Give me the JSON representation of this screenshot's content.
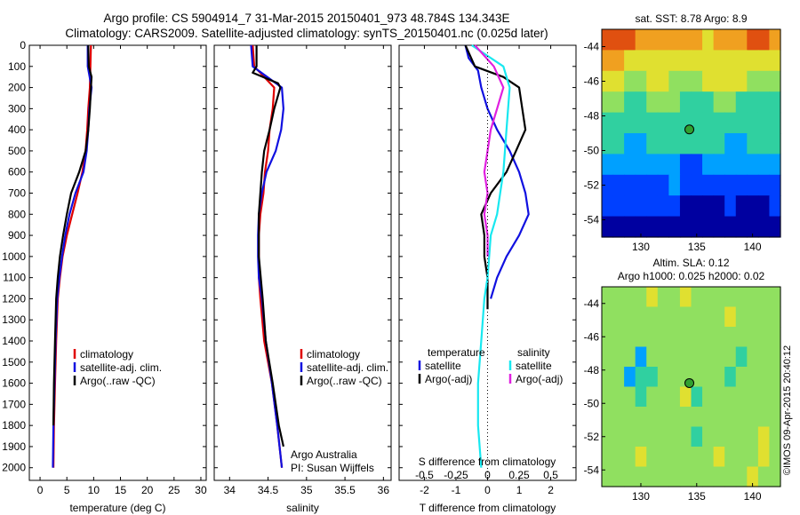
{
  "header": {
    "line1": "Argo profile: CS 5904914_7 31-Mar-2015 20150401_973 48.784S 134.343E",
    "line2": "Climatology: CARS2009. Satellite-adjusted climatology: synTS_20150401.nc (0.025d later)"
  },
  "colors": {
    "climatology": "#e00000",
    "satellite": "#1010e0",
    "argo": "#000000",
    "cyan": "#18e8f0",
    "magenta": "#e020e0",
    "marker": "#30a030"
  },
  "panels": {
    "temperature": {
      "xlabel": "temperature (deg C)",
      "xticks": [
        "0",
        "5",
        "10",
        "15",
        "20",
        "25",
        "30"
      ],
      "legend": [
        "climatology",
        "satellite-adj. clim.",
        "Argo(..raw -QC)"
      ]
    },
    "salinity": {
      "xlabel": "salinity",
      "xticks": [
        "34",
        "34.5",
        "35",
        "35.5",
        "36"
      ],
      "legend": [
        "climatology",
        "satellite-adj. clim.",
        "Argo(..raw -QC)"
      ],
      "note1": "Argo Australia",
      "note2": "PI: Susan Wijffels"
    },
    "difference": {
      "top_label": "S difference from climatology",
      "top_ticks": [
        "-0.5",
        "-0.25",
        "0",
        "0.25",
        "0.5"
      ],
      "xlabel": "T difference from climatology",
      "xticks": [
        "-2",
        "-1",
        "0",
        "1",
        "2"
      ],
      "legend_t_title": "temperature",
      "legend_t": [
        "satellite",
        "Argo(-adj)"
      ],
      "legend_s_title": "salinity",
      "legend_s": [
        "satellite",
        "Argo(-adj)"
      ]
    },
    "depth_ticks": [
      "0",
      "100",
      "200",
      "300",
      "400",
      "500",
      "600",
      "700",
      "800",
      "900",
      "1000",
      "1100",
      "1200",
      "1300",
      "1400",
      "1500",
      "1600",
      "1700",
      "1800",
      "1900",
      "2000"
    ]
  },
  "maps": {
    "sst_title": "sat. SST: 8.78 Argo: 8.9",
    "sla_title1": "Altim. SLA: 0.12",
    "sla_title2": "Argo h1000: 0.025 h2000: 0.02",
    "yticks": [
      "-44",
      "-46",
      "-48",
      "-50",
      "-52",
      "-54"
    ],
    "xticks": [
      "130",
      "135",
      "140"
    ],
    "footer": "©IMOS 09-Apr-2015 20:40:12"
  },
  "chart_data": [
    {
      "type": "line",
      "title": "",
      "xlabel": "temperature (deg C)",
      "ylabel": "",
      "xlim": [
        -2,
        31
      ],
      "ylim": [
        2060,
        0
      ],
      "series": [
        {
          "name": "climatology",
          "x": [
            9.5,
            9.4,
            9.3,
            9.0,
            8.8,
            8.5,
            7.9,
            7.0,
            6.0,
            5.0,
            4.2,
            3.7,
            3.3,
            3.0,
            2.8,
            2.6,
            2.5
          ],
          "y": [
            0,
            100,
            200,
            300,
            400,
            500,
            600,
            700,
            800,
            900,
            1000,
            1100,
            1200,
            1400,
            1600,
            1800,
            2000
          ]
        },
        {
          "name": "satellite-adj. clim.",
          "x": [
            8.9,
            8.9,
            9.6,
            9.2,
            9.0,
            8.7,
            8.1,
            6.6,
            5.5,
            4.7,
            4.1,
            3.6,
            3.2,
            2.9,
            2.7,
            2.5,
            2.4
          ],
          "y": [
            0,
            100,
            200,
            300,
            400,
            500,
            600,
            700,
            800,
            900,
            1000,
            1100,
            1200,
            1400,
            1600,
            1800,
            2000
          ]
        },
        {
          "name": "Argo(..raw -QC)",
          "x": [
            9.0,
            9.1,
            9.6,
            9.5,
            9.3,
            9.0,
            8.5,
            7.3,
            5.8,
            5.0,
            4.3,
            3.7,
            3.3,
            3.0,
            2.8,
            2.6,
            2.5
          ],
          "y": [
            0,
            100,
            150,
            200,
            300,
            400,
            500,
            600,
            700,
            800,
            900,
            1000,
            1100,
            1200,
            1400,
            1600,
            1800
          ]
        }
      ]
    },
    {
      "type": "line",
      "title": "",
      "xlabel": "salinity",
      "ylabel": "",
      "xlim": [
        33.8,
        36.1
      ],
      "ylim": [
        2060,
        0
      ],
      "series": [
        {
          "name": "climatology",
          "x": [
            34.3,
            34.32,
            34.58,
            34.56,
            34.52,
            34.5,
            34.46,
            34.44,
            34.4,
            34.38,
            34.38,
            34.38,
            34.4,
            34.45,
            34.55,
            34.62,
            34.68
          ],
          "y": [
            0,
            100,
            200,
            300,
            400,
            500,
            600,
            700,
            800,
            900,
            1000,
            1100,
            1200,
            1400,
            1600,
            1800,
            2000
          ]
        },
        {
          "name": "satellite-adj. clim.",
          "x": [
            34.28,
            34.3,
            34.68,
            34.7,
            34.67,
            34.6,
            34.48,
            34.42,
            34.38,
            34.37,
            34.37,
            34.38,
            34.42,
            34.47,
            34.55,
            34.62,
            34.68
          ],
          "y": [
            0,
            100,
            200,
            300,
            400,
            500,
            600,
            700,
            800,
            900,
            1000,
            1100,
            1200,
            1400,
            1600,
            1800,
            2000
          ]
        },
        {
          "name": "Argo(..raw -QC)",
          "x": [
            34.35,
            34.35,
            34.3,
            34.63,
            34.66,
            34.58,
            34.52,
            34.45,
            34.42,
            34.4,
            34.38,
            34.38,
            34.43,
            34.47,
            34.56,
            34.64,
            34.7
          ],
          "y": [
            0,
            100,
            130,
            180,
            200,
            300,
            400,
            500,
            600,
            700,
            800,
            1000,
            1200,
            1400,
            1600,
            1800,
            1900
          ]
        }
      ]
    },
    {
      "type": "line",
      "title": "",
      "xlabel": "T difference from climatology",
      "ylabel": "",
      "xlim": [
        -2.8,
        2.8
      ],
      "ylim": [
        2060,
        0
      ],
      "series": [
        {
          "name": "temperature satellite",
          "x": [
            -0.7,
            -0.6,
            -0.3,
            -0.2,
            0,
            0.3,
            0.7,
            1.0,
            1.2,
            1.3,
            1.0,
            0.6,
            0.3,
            0.1
          ],
          "y": [
            0,
            60,
            120,
            200,
            300,
            400,
            500,
            600,
            700,
            800,
            900,
            1000,
            1100,
            1200
          ]
        },
        {
          "name": "temperature Argo(-adj)",
          "x": [
            -0.7,
            -0.4,
            0.5,
            1.0,
            1.2,
            0.9,
            0.6,
            0.1,
            -0.2,
            -0.1,
            -0.1,
            0,
            0,
            0
          ],
          "y": [
            0,
            100,
            150,
            200,
            400,
            500,
            600,
            700,
            800,
            900,
            1000,
            1100,
            1200,
            1250
          ]
        },
        {
          "name": "salinity satellite",
          "x": [
            -0.5,
            0.5,
            0.7,
            0.6,
            0.5,
            0.4,
            0.3,
            0.1,
            0,
            -0.1,
            -0.2,
            -0.3,
            -0.3,
            -0.2
          ],
          "y": [
            0,
            100,
            200,
            400,
            600,
            700,
            800,
            900,
            1100,
            1200,
            1400,
            1600,
            1800,
            2000
          ]
        },
        {
          "name": "salinity Argo(-adj)",
          "x": [
            -0.4,
            0.2,
            0.5,
            0.3,
            0.1,
            0,
            -0.1,
            0,
            -0.1,
            0,
            0
          ],
          "y": [
            0,
            100,
            200,
            300,
            400,
            500,
            600,
            700,
            800,
            900,
            1000
          ]
        }
      ]
    },
    {
      "type": "heatmap",
      "title": "sat. SST: 8.78 Argo: 8.9",
      "xlim": [
        126.5,
        142.5
      ],
      "ylim": [
        -55,
        -43
      ],
      "colorscale": [
        "#0000a0",
        "#0040ff",
        "#00a0ff",
        "#30d0a0",
        "#90e060",
        "#e0e030",
        "#f0a020",
        "#e05010"
      ],
      "rows": [
        "7776666665666776",
        "6655555555555555",
        "5544554445555444",
        "4433444333443333",
        "3333333333333333",
        "3322333333322333",
        "2222222112222222",
        "1111112111111111",
        "1111111000010001",
        "0000000000000000"
      ],
      "float_lon": 134.343,
      "float_lat": -48.784
    },
    {
      "type": "heatmap",
      "title": "Altim. SLA: 0.12",
      "xlim": [
        126.5,
        142.5
      ],
      "ylim": [
        -55,
        -43
      ],
      "colorscale": [
        "#0000a0",
        "#0040ff",
        "#00a0ff",
        "#30d0a0",
        "#90e060",
        "#e0e030",
        "#f0a020",
        "#e05010"
      ],
      "rows": [
        "4444544544444444",
        "4444444444454444",
        "4444444444444444",
        "4442444444443444",
        "4423344444434444",
        "4443444534444444",
        "4444444444444444",
        "4444444434444454",
        "4445444444544454",
        "4444444444444544"
      ],
      "float_lon": 134.343,
      "float_lat": -48.784
    }
  ]
}
